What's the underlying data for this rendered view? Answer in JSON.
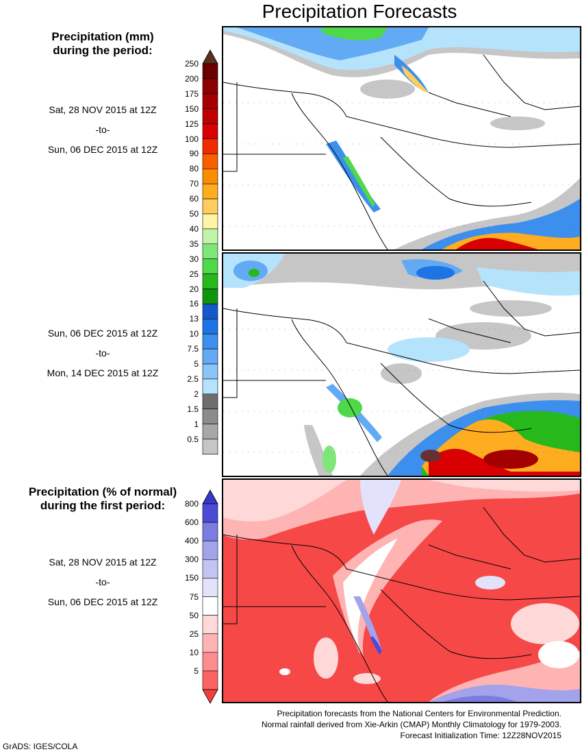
{
  "title": "Precipitation Forecasts",
  "section1": {
    "heading": [
      "Precipitation (mm)",
      "during the period:"
    ],
    "period1": {
      "start": "Sat, 28 NOV 2015 at 12Z",
      "sep": "-to-",
      "end": "Sun, 06 DEC 2015 at 12Z"
    },
    "period2": {
      "start": "Sun, 06 DEC 2015 at 12Z",
      "sep": "-to-",
      "end": "Mon, 14 DEC 2015 at 12Z"
    }
  },
  "section2": {
    "heading": [
      "Precipitation (% of normal)",
      "during the first period:"
    ],
    "period": {
      "start": "Sat, 28 NOV 2015 at 12Z",
      "sep": "-to-",
      "end": "Sun, 06 DEC 2015 at 12Z"
    }
  },
  "legend_mm": {
    "labels": [
      "250",
      "200",
      "175",
      "150",
      "125",
      "100",
      "90",
      "80",
      "70",
      "60",
      "50",
      "40",
      "35",
      "30",
      "25",
      "20",
      "16",
      "13",
      "10",
      "7.5",
      "5",
      "2.5",
      "2",
      "1.5",
      "1",
      "0.5"
    ],
    "colors": [
      "#6a0000",
      "#8b0000",
      "#a40000",
      "#c00000",
      "#d80000",
      "#f22a00",
      "#f85f00",
      "#fc8d00",
      "#fdad1f",
      "#fecd5c",
      "#fff3a6",
      "#c0f5a8",
      "#7fe77a",
      "#4fd84a",
      "#27b81c",
      "#10940f",
      "#1459cc",
      "#1e74e4",
      "#3d8fee",
      "#63aaf4",
      "#8ac5f8",
      "#b5e3fc",
      "#6e6e6e",
      "#8c8c8c",
      "#a8a8a8",
      "#c6c6c6"
    ],
    "top_arrow_color": "#5a3020"
  },
  "legend_pct": {
    "labels": [
      "800",
      "600",
      "400",
      "300",
      "150",
      "75",
      "50",
      "25",
      "10",
      "5"
    ],
    "colors": [
      "#4b4bd6",
      "#7b7be0",
      "#a3a3ec",
      "#c4c4f4",
      "#e2e2fb",
      "#ffffff",
      "#ffd8d8",
      "#ffb4b4",
      "#ff8c8c",
      "#fc6464"
    ],
    "top_arrow_color": "#3838c8",
    "bottom_arrow_color": "#f53c3c"
  },
  "footer": [
    "Precipitation forecasts from the National Centers for Environmental Prediction.",
    "Normal rainfall derived from Xie-Arkin (CMAP) Monthly Climatology for 1979-2003.",
    "Forecast Initialization Time: 12Z28NOV2015"
  ],
  "credit": "GrADS: IGES/COLA"
}
